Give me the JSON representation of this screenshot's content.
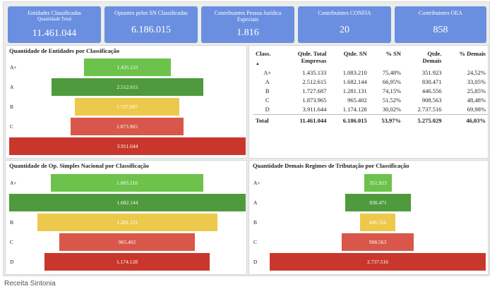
{
  "kpis": [
    {
      "title": "Entidades Classificadas",
      "subtitle": "Quantidade Total",
      "value": "11.461.044"
    },
    {
      "title": "Optantes pelos SN Classificadas",
      "value": "6.186.015"
    },
    {
      "title": "Contribuintes Pessoa Jurídica Especiais",
      "value": "1.816"
    },
    {
      "title": "Contribuintes CONFIA",
      "value": "20"
    },
    {
      "title": "Contribuintes OEA",
      "value": "858"
    }
  ],
  "colors": {
    "A+": "#6cc24a",
    "A": "#4e9a3d",
    "B": "#ecc94b",
    "C": "#d9574a",
    "D": "#c9372c",
    "kpi": "#6b8fe0"
  },
  "funnels": {
    "entidades": {
      "title": "Quantidade de Entidades por Classificação",
      "chart_data": {
        "type": "bar",
        "categories": [
          "A+",
          "A",
          "B",
          "C",
          "D"
        ],
        "values": [
          1435133,
          2512615,
          1727687,
          1873965,
          3911644
        ],
        "labels": [
          "1.435.133",
          "2.512.615",
          "1.727.687",
          "1.873.965",
          "3.911.644"
        ]
      }
    },
    "simples": {
      "title": "Quantidade de Op. Simples Nacional por Classificação",
      "chart_data": {
        "type": "bar",
        "categories": [
          "A+",
          "A",
          "B",
          "C",
          "D"
        ],
        "values": [
          1083210,
          1682144,
          1281131,
          965402,
          1174128
        ],
        "labels": [
          "1.083.210",
          "1.682.144",
          "1.281.131",
          "965.402",
          "1.174.128"
        ]
      }
    },
    "demais": {
      "title": "Quantidade Demais Regimes de Tributação por Classificação",
      "chart_data": {
        "type": "bar",
        "categories": [
          "A+",
          "A",
          "B",
          "C",
          "D"
        ],
        "values": [
          351923,
          830471,
          446556,
          908563,
          2737516
        ],
        "labels": [
          "351.923",
          "830.471",
          "446.556",
          "908.563",
          "2.737.516"
        ]
      }
    }
  },
  "table": {
    "headers": {
      "class_": "Class.",
      "total_a": "Qtde. Total",
      "total_b": "Empresas",
      "sn": "Qtde. SN",
      "pct_sn": "% SN",
      "demais_a": "Qtde.",
      "demais_b": "Demais",
      "pct_demais": "% Demais"
    },
    "sort_indicator": "▲",
    "rows": [
      {
        "class_": "A+",
        "total": "1.435.133",
        "sn": "1.083.210",
        "pct_sn": "75,48%",
        "demais": "351.923",
        "pct_demais": "24,52%"
      },
      {
        "class_": "A",
        "total": "2.512.615",
        "sn": "1.682.144",
        "pct_sn": "66,95%",
        "demais": "830.471",
        "pct_demais": "33,05%"
      },
      {
        "class_": "B",
        "total": "1.727.687",
        "sn": "1.281.131",
        "pct_sn": "74,15%",
        "demais": "446.556",
        "pct_demais": "25,85%"
      },
      {
        "class_": "C",
        "total": "1.873.965",
        "sn": "965.402",
        "pct_sn": "51,52%",
        "demais": "908.563",
        "pct_demais": "48,48%"
      },
      {
        "class_": "D",
        "total": "3.911.644",
        "sn": "1.174.128",
        "pct_sn": "30,02%",
        "demais": "2.737.516",
        "pct_demais": "69,98%"
      }
    ],
    "total": {
      "class_": "Total",
      "total": "11.461.044",
      "sn": "6.186.015",
      "pct_sn": "53,97%",
      "demais": "5.275.029",
      "pct_demais": "46,03%"
    }
  },
  "caption": "Receita Sintonia"
}
